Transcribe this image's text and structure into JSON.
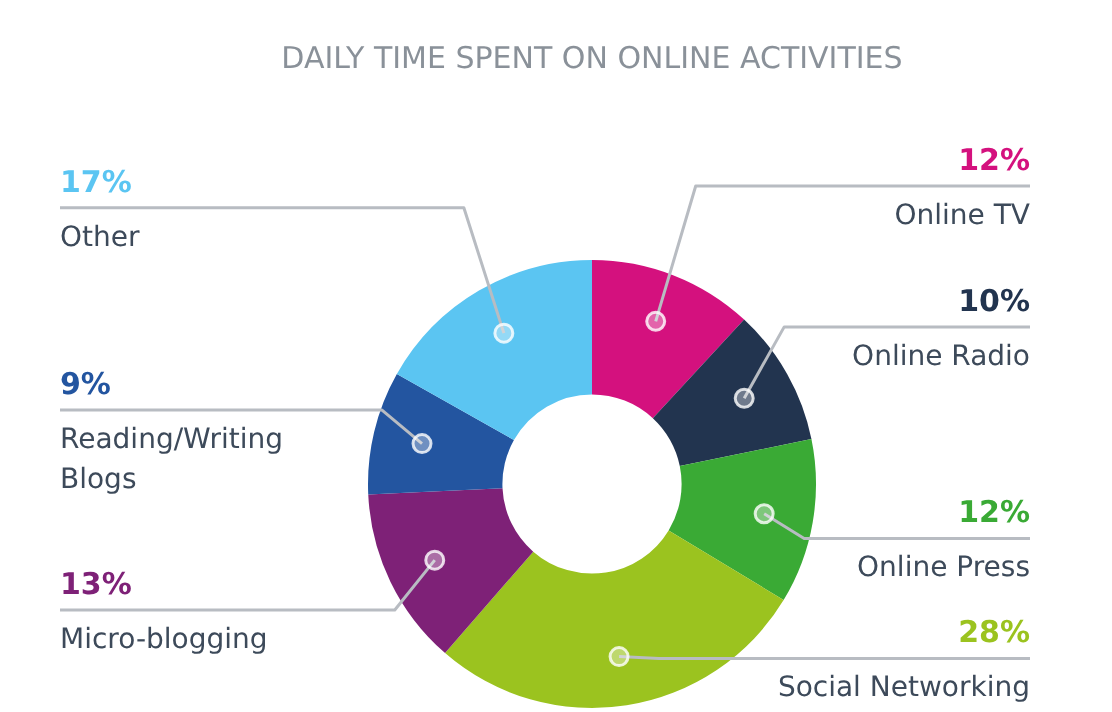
{
  "chart_data": {
    "type": "donut",
    "title": "DAILY TIME SPENT ON ONLINE ACTIVITIES",
    "categories": [
      "Online TV",
      "Online Radio",
      "Online Press",
      "Social Networking",
      "Micro-blogging",
      "Reading/Writing Blogs",
      "Other"
    ],
    "values": [
      12,
      10,
      12,
      28,
      13,
      9,
      17
    ],
    "value_labels": [
      "12%",
      "10%",
      "12%",
      "28%",
      "13%",
      "9%",
      "17%"
    ],
    "colors": [
      "#d4117e",
      "#22344f",
      "#3aaa35",
      "#9bc31f",
      "#7e2177",
      "#2355a0",
      "#5bc5f2"
    ],
    "legend": false
  }
}
